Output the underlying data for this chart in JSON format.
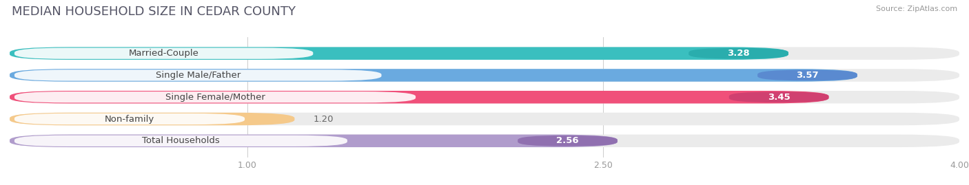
{
  "title": "MEDIAN HOUSEHOLD SIZE IN CEDAR COUNTY",
  "source": "Source: ZipAtlas.com",
  "categories": [
    "Married-Couple",
    "Single Male/Father",
    "Single Female/Mother",
    "Non-family",
    "Total Households"
  ],
  "values": [
    3.28,
    3.57,
    3.45,
    1.2,
    2.56
  ],
  "bar_colors": [
    "#3abfbf",
    "#6aaae0",
    "#f0507a",
    "#f5c98a",
    "#b09ccc"
  ],
  "value_bg_colors": [
    "#2aadad",
    "#5a8ad0",
    "#d04070",
    "#c8a060",
    "#9070b0"
  ],
  "xlim": [
    0,
    4.0
  ],
  "xticks": [
    1.0,
    2.5,
    4.0
  ],
  "background_color": "#ffffff",
  "bar_bg_color": "#ebebeb",
  "title_fontsize": 13,
  "label_fontsize": 9.5,
  "value_fontsize": 9.5,
  "bar_height": 0.58,
  "bar_gap": 0.42
}
